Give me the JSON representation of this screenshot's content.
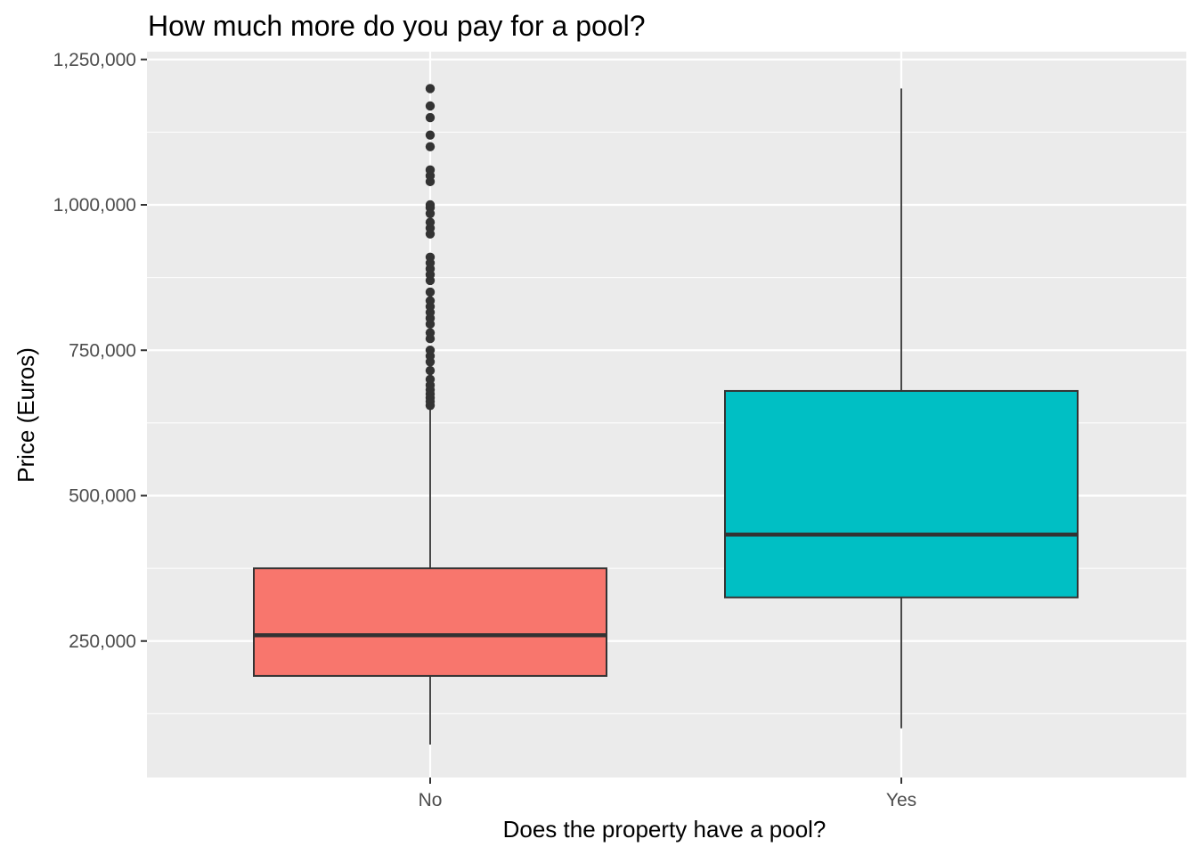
{
  "chart_data": {
    "type": "boxplot",
    "title": "How much more do you pay for a pool?",
    "xlabel": "Does the property have a pool?",
    "ylabel": "Price (Euros)",
    "ylim": [
      0,
      1250000
    ],
    "yticks": [
      250000,
      500000,
      750000,
      1000000,
      1250000
    ],
    "ytick_labels": [
      "250,000",
      "500,000",
      "750,000",
      "1,000,000",
      "1,250,000"
    ],
    "grid": true,
    "legend": "none",
    "categories": [
      "No",
      "Yes"
    ],
    "boxes": [
      {
        "category": "No",
        "color": "#F8766D",
        "whisker_low": 72000,
        "q1": 190000,
        "median": 260000,
        "q3": 375000,
        "whisker_high": 650000,
        "outliers": [
          655000,
          662000,
          668000,
          675000,
          682000,
          690000,
          700000,
          715000,
          730000,
          740000,
          750000,
          770000,
          780000,
          795000,
          805000,
          815000,
          825000,
          835000,
          850000,
          870000,
          880000,
          890000,
          900000,
          910000,
          950000,
          960000,
          970000,
          985000,
          995000,
          1000000,
          1040000,
          1050000,
          1060000,
          1100000,
          1120000,
          1150000,
          1170000,
          1200000
        ]
      },
      {
        "category": "Yes",
        "color": "#00BFC4",
        "whisker_low": 100000,
        "q1": 325000,
        "median": 433000,
        "q3": 680000,
        "whisker_high": 1200000,
        "outliers": []
      }
    ]
  }
}
